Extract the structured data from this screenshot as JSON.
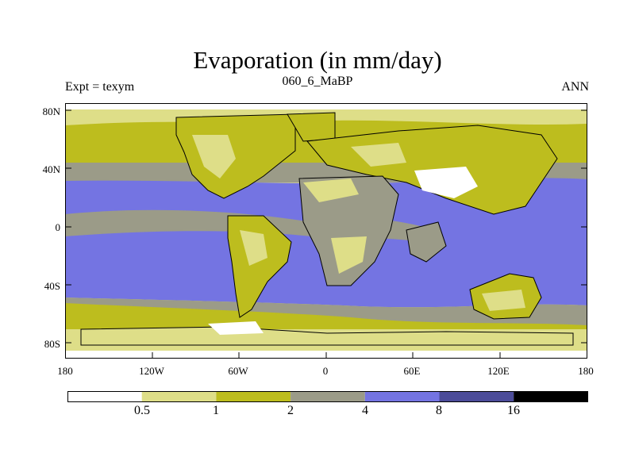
{
  "title": "Evaporation (in mm/day)",
  "subtitle": "060_6_MaBP",
  "left_label": "Expt = texym",
  "right_label": "ANN",
  "y_ticks": [
    "80N",
    "40N",
    "0",
    "40S",
    "80S"
  ],
  "x_ticks": [
    "180",
    "120W",
    "60W",
    "0",
    "60E",
    "120E",
    "180"
  ],
  "colorbar": {
    "labels": [
      "0.5",
      "1",
      "2",
      "4",
      "8",
      "16"
    ],
    "colors": [
      "#ffffff",
      "#dede88",
      "#bdbd1e",
      "#9b9b88",
      "#7474e2",
      "#4c4c99",
      "#000000"
    ]
  }
}
